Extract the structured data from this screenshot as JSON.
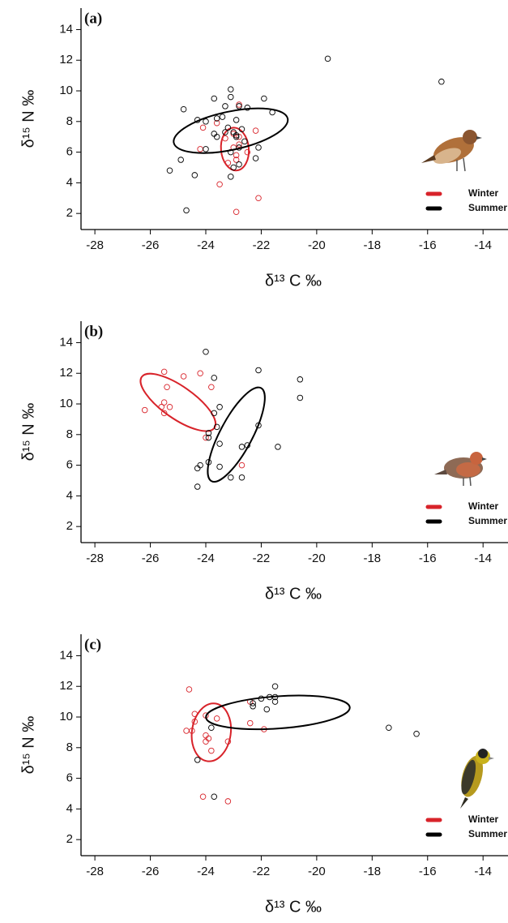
{
  "chart_data": [
    {
      "type": "scatter",
      "panel": "(a)",
      "xlabel": "δ¹³ C ‰",
      "ylabel": "δ¹⁵ N ‰",
      "xlim": [
        -28.5,
        -13.1
      ],
      "ylim": [
        0.95,
        15.4
      ],
      "xticks": [
        -28,
        -26,
        -24,
        -22,
        -20,
        -18,
        -16,
        -14
      ],
      "yticks": [
        2,
        4,
        6,
        8,
        10,
        12,
        14
      ],
      "legend": "lower right",
      "series": [
        {
          "name": "Winter",
          "color": "#d8232a",
          "x": [
            -24.1,
            -22.2,
            -23.6,
            -23.0,
            -22.8,
            -23.3,
            -24.2,
            -22.8,
            -22.5,
            -23.0,
            -22.9,
            -23.2,
            -22.9,
            -23.5,
            -22.1,
            -22.9,
            -22.8
          ],
          "values": [
            7.6,
            7.4,
            7.9,
            7.2,
            7.0,
            6.9,
            6.2,
            6.5,
            6.0,
            6.3,
            5.8,
            5.3,
            5.5,
            3.9,
            3.0,
            2.1,
            9.1
          ],
          "ellipse": {
            "cx": -22.95,
            "cy": 6.2,
            "rx": 0.5,
            "ry": 1.4,
            "angle": -5
          }
        },
        {
          "name": "Summer",
          "color": "#000000",
          "x": [
            -19.6,
            -15.5,
            -23.1,
            -23.1,
            -23.7,
            -21.9,
            -23.3,
            -22.5,
            -22.8,
            -24.8,
            -21.6,
            -24.3,
            -23.4,
            -24.0,
            -23.6,
            -22.9,
            -23.2,
            -22.7,
            -23.0,
            -23.3,
            -23.6,
            -23.7,
            -22.9,
            -22.6,
            -22.1,
            -24.0,
            -23.1,
            -22.8,
            -22.2,
            -24.9,
            -23.0,
            -22.8,
            -25.3,
            -24.4,
            -23.1,
            -24.7,
            -22.9
          ],
          "values": [
            12.1,
            10.6,
            10.1,
            9.6,
            9.5,
            9.5,
            9.0,
            8.9,
            9.0,
            8.8,
            8.6,
            8.1,
            8.3,
            8.0,
            8.2,
            8.1,
            7.6,
            7.5,
            7.3,
            7.3,
            7.0,
            7.2,
            7.0,
            6.7,
            6.3,
            6.2,
            6.0,
            6.3,
            5.6,
            5.5,
            5.0,
            5.2,
            4.8,
            4.5,
            4.4,
            2.2,
            7.1
          ],
          "ellipse": {
            "cx": -23.1,
            "cy": 7.4,
            "rx": 2.1,
            "ry": 1.25,
            "angle": -12
          }
        }
      ]
    },
    {
      "type": "scatter",
      "panel": "(b)",
      "xlabel": "δ¹³ C ‰",
      "ylabel": "δ¹⁵ N ‰",
      "xlim": [
        -28.5,
        -13.1
      ],
      "ylim": [
        0.95,
        15.4
      ],
      "xticks": [
        -28,
        -26,
        -24,
        -22,
        -20,
        -18,
        -16,
        -14
      ],
      "yticks": [
        2,
        4,
        6,
        8,
        10,
        12,
        14
      ],
      "legend": "lower right",
      "series": [
        {
          "name": "Winter",
          "color": "#d8232a",
          "x": [
            -25.5,
            -24.8,
            -24.2,
            -25.4,
            -23.8,
            -25.5,
            -25.3,
            -25.6,
            -26.2,
            -25.5,
            -24.0,
            -22.7
          ],
          "values": [
            12.1,
            11.8,
            12.0,
            11.1,
            11.1,
            10.1,
            9.8,
            9.8,
            9.6,
            9.4,
            7.8,
            6.0
          ],
          "ellipse": {
            "cx": -25.0,
            "cy": 10.1,
            "rx": 1.6,
            "ry": 1.05,
            "angle": 35
          }
        },
        {
          "name": "Summer",
          "color": "#000000",
          "x": [
            -24.0,
            -22.1,
            -20.6,
            -23.7,
            -20.6,
            -23.5,
            -23.7,
            -22.1,
            -23.6,
            -23.9,
            -23.9,
            -23.5,
            -22.7,
            -22.5,
            -21.4,
            -23.9,
            -24.2,
            -23.5,
            -24.3,
            -23.1,
            -22.7,
            -24.3
          ],
          "values": [
            13.4,
            12.2,
            11.6,
            11.7,
            10.4,
            9.8,
            9.4,
            8.6,
            8.5,
            8.1,
            7.8,
            7.4,
            7.2,
            7.3,
            7.2,
            6.2,
            6.0,
            5.9,
            5.8,
            5.2,
            5.2,
            4.6
          ],
          "ellipse": {
            "cx": -22.9,
            "cy": 8.0,
            "rx": 1.9,
            "ry": 1.05,
            "angle": -62
          }
        }
      ]
    },
    {
      "type": "scatter",
      "panel": "(c)",
      "xlabel": "δ¹³ C ‰",
      "ylabel": "δ¹⁵ N ‰",
      "xlim": [
        -28.5,
        -13.1
      ],
      "ylim": [
        0.95,
        15.4
      ],
      "xticks": [
        -28,
        -26,
        -24,
        -22,
        -20,
        -18,
        -16,
        -14
      ],
      "yticks": [
        2,
        4,
        6,
        8,
        10,
        12,
        14
      ],
      "legend": "lower right",
      "series": [
        {
          "name": "Winter",
          "color": "#d8232a",
          "x": [
            -24.6,
            -22.4,
            -24.4,
            -24.0,
            -23.6,
            -24.4,
            -22.4,
            -24.7,
            -24.5,
            -21.9,
            -24.0,
            -23.9,
            -24.0,
            -23.2,
            -23.8,
            -24.1,
            -23.2
          ],
          "values": [
            11.8,
            11.0,
            10.2,
            10.1,
            9.9,
            9.7,
            9.6,
            9.1,
            9.1,
            9.2,
            8.8,
            8.6,
            8.4,
            8.4,
            7.8,
            4.8,
            4.5
          ],
          "ellipse": {
            "cx": -23.8,
            "cy": 9.0,
            "rx": 0.7,
            "ry": 1.9,
            "angle": 8
          }
        },
        {
          "name": "Summer",
          "color": "#000000",
          "x": [
            -21.5,
            -22.0,
            -21.7,
            -21.5,
            -21.5,
            -22.3,
            -22.3,
            -21.8,
            -17.4,
            -16.4,
            -23.8,
            -24.3,
            -23.7
          ],
          "values": [
            12.0,
            11.2,
            11.3,
            11.3,
            11.0,
            10.9,
            10.7,
            10.5,
            9.3,
            8.9,
            9.3,
            7.2,
            4.8
          ],
          "ellipse": {
            "cx": -21.4,
            "cy": 10.3,
            "rx": 2.6,
            "ry": 1.05,
            "angle": -4
          }
        }
      ]
    }
  ]
}
